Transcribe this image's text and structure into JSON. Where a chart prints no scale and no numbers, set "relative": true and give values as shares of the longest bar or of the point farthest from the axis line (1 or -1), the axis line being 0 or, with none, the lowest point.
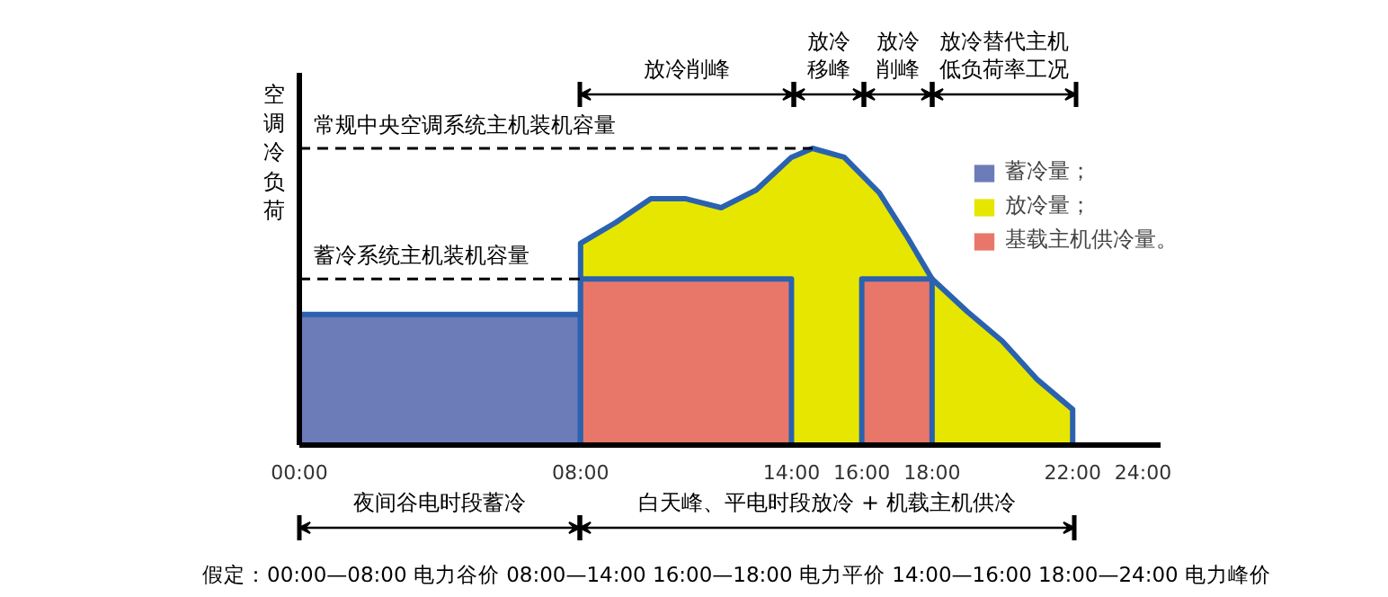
{
  "chart_data": {
    "type": "area",
    "relative": true,
    "ylabel": "空调冷负荷",
    "xlim": [
      0,
      24.5
    ],
    "xticks": [
      {
        "value": 0,
        "label": "00:00"
      },
      {
        "value": 8,
        "label": "08:00"
      },
      {
        "value": 14,
        "label": "14:00"
      },
      {
        "value": 16,
        "label": "16:00"
      },
      {
        "value": 18,
        "label": "18:00"
      },
      {
        "value": 22,
        "label": "22:00"
      },
      {
        "value": 24,
        "label": "24:00"
      }
    ],
    "grid": false,
    "legend": "top right",
    "series": [
      {
        "name": "蓄冷量；",
        "color": "#6c7cb8",
        "x": [
          0,
          8
        ],
        "values": [
          0.44,
          0.44
        ]
      },
      {
        "name": "放冷量；",
        "color": "#e6e600",
        "x": [
          8,
          9,
          10,
          11,
          12,
          13,
          14,
          14.6,
          15.5,
          16.5,
          17.3,
          18,
          19,
          20,
          21,
          22
        ],
        "values": [
          0.68,
          0.75,
          0.83,
          0.83,
          0.8,
          0.86,
          0.97,
          1.0,
          0.97,
          0.85,
          0.7,
          0.56,
          0.45,
          0.35,
          0.22,
          0.12
        ]
      },
      {
        "name": "基载主机供冷量。",
        "color": "#e8776a",
        "x": [
          8,
          14,
          14,
          16,
          16,
          18
        ],
        "values": [
          0.56,
          0.56,
          0,
          0,
          0.56,
          0.56
        ]
      }
    ],
    "ref_lines": [
      {
        "axis": "y",
        "value": 1.0,
        "label": "常规中央空调系统主机装机容量",
        "line_style": "dashed"
      },
      {
        "axis": "y",
        "value": 0.56,
        "label": "蓄冷系统主机装机容量",
        "line_style": "dashed"
      }
    ],
    "annotations": [
      "放冷削峰",
      "放冷移峰",
      "放冷削峰",
      "放冷替代主机低负荷率工况",
      "夜间谷电时段蓄冷",
      "白天峰、平电时段放冷 + 机载主机供冷",
      "假定：00:00—08:00 电力谷价   08:00—14:00   16:00—18:00 电力平价   14:00—16:00   18:00—24:00 电力峰价"
    ]
  }
}
